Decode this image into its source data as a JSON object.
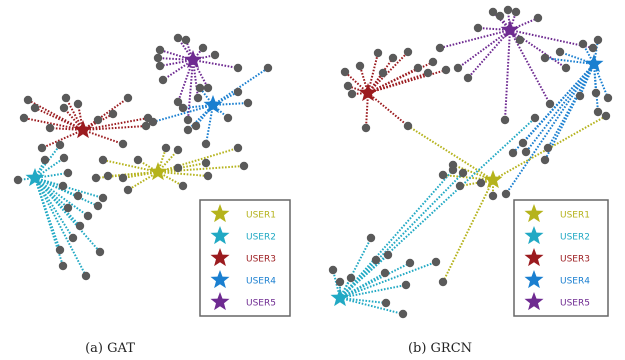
{
  "colors": {
    "user1": "#b5b31c",
    "user2": "#21a9c4",
    "user3": "#9b1b1f",
    "user4": "#1a7fd0",
    "user5": "#6e2a91",
    "node": "#5a5a5a"
  },
  "panels": [
    {
      "caption": "(a)  GAT",
      "legend": [
        {
          "key": "user1",
          "label": "USER1"
        },
        {
          "key": "user2",
          "label": "USER2"
        },
        {
          "key": "user3",
          "label": "USER3"
        },
        {
          "key": "user4",
          "label": "USER4"
        },
        {
          "key": "user5",
          "label": "USER5"
        }
      ]
    },
    {
      "caption": "(b)  GRCN",
      "legend": [
        {
          "key": "user1",
          "label": "USER1"
        },
        {
          "key": "user2",
          "label": "USER2"
        },
        {
          "key": "user3",
          "label": "USER3"
        },
        {
          "key": "user4",
          "label": "USER4"
        },
        {
          "key": "user5",
          "label": "USER5"
        }
      ]
    }
  ]
}
